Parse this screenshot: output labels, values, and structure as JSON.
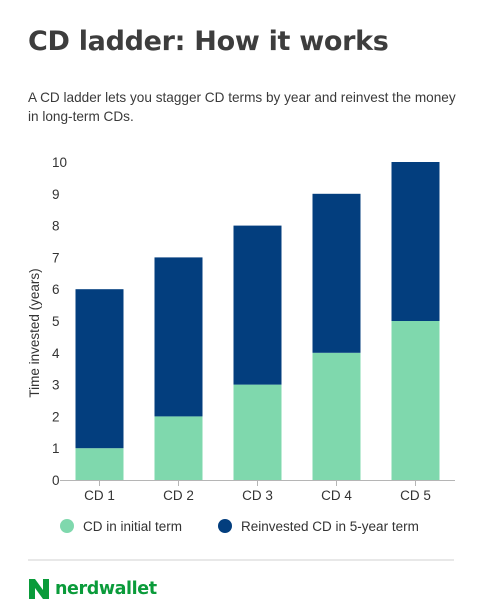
{
  "title": "CD ladder: How it works",
  "subtitle": "A CD ladder lets you stagger CD terms by year and reinvest the money in long-term CDs.",
  "colors": {
    "initial": "#7fd8ad",
    "reinvested": "#033e7e",
    "axis_text": "#333333",
    "brand": "#0a9b3a"
  },
  "brand": {
    "name": "nerdwallet",
    "icon": "nerdwallet-logo-icon"
  },
  "chart_data": {
    "type": "bar",
    "stacked": true,
    "categories": [
      "CD 1",
      "CD 2",
      "CD 3",
      "CD 4",
      "CD 5"
    ],
    "series": [
      {
        "name": "CD in initial term",
        "values": [
          1,
          2,
          3,
          4,
          5
        ]
      },
      {
        "name": "Reinvested CD in 5-year term",
        "values": [
          5,
          5,
          5,
          5,
          5
        ]
      }
    ],
    "ylabel": "Time invested (years)",
    "xlabel": "",
    "ylim": [
      0,
      10
    ],
    "yticks": [
      0,
      1,
      2,
      3,
      4,
      5,
      6,
      7,
      8,
      9,
      10
    ],
    "grid": false,
    "legend_position": "bottom"
  }
}
